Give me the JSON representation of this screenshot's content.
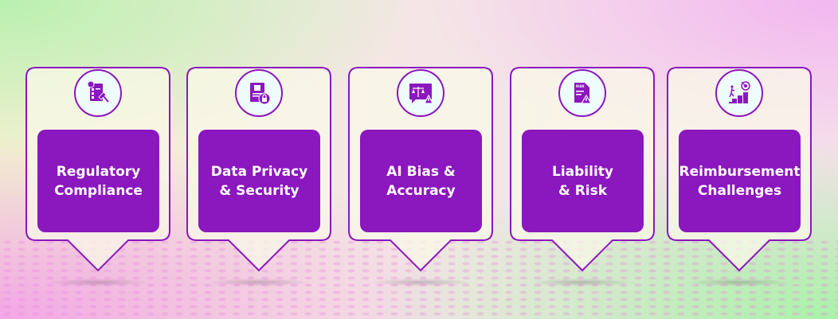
{
  "colors": {
    "accent": "#8b17be",
    "icon_bg": "#effcfc"
  },
  "cards": [
    {
      "icon": "compliance-checklist-gavel-icon",
      "lines": [
        "Regulatory",
        "Compliance"
      ]
    },
    {
      "icon": "privacy-document-lock-icon",
      "lines": [
        "Data Privacy",
        "& Security"
      ]
    },
    {
      "icon": "scale-warning-icon",
      "lines": [
        "AI Bias &",
        "Accuracy"
      ]
    },
    {
      "icon": "risk-document-warning-icon",
      "lines": [
        "Liability",
        "& Risk"
      ]
    },
    {
      "icon": "stairs-target-icon",
      "lines": [
        "Reimbursement",
        "Challenges"
      ]
    }
  ],
  "risk_label": "RISK"
}
